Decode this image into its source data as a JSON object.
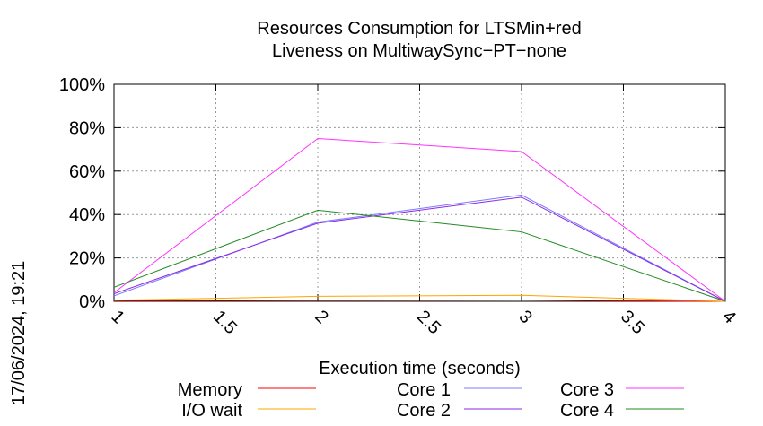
{
  "chart_data": {
    "type": "line",
    "title": "Resources Consumption for LTSMin+red",
    "subtitle": "Liveness on MultiwaySync−PT−none",
    "xlabel": "Execution time (seconds)",
    "ylabel": "",
    "side_label": "17/06/2024, 19:21",
    "xlim": [
      1,
      4
    ],
    "ylim": [
      0,
      100
    ],
    "x_ticks": [
      "1",
      "1.5",
      "2",
      "2.5",
      "3",
      "3.5",
      "4"
    ],
    "y_ticks": [
      "0%",
      "20%",
      "40%",
      "60%",
      "80%",
      "100%"
    ],
    "grid": true,
    "legend_position": "bottom",
    "series": [
      {
        "name": "Memory",
        "color": "#ff0000",
        "x": [
          1,
          2,
          3,
          4
        ],
        "values": [
          0.3,
          0.5,
          0.6,
          0
        ]
      },
      {
        "name": "I/O wait",
        "color": "#ffa500",
        "x": [
          1,
          2,
          3,
          4
        ],
        "values": [
          0.5,
          2.3,
          2.8,
          0
        ]
      },
      {
        "name": "Core 1",
        "color": "#7b7bff",
        "x": [
          1,
          2,
          3,
          4
        ],
        "values": [
          2.5,
          36.5,
          49,
          0
        ]
      },
      {
        "name": "Core 2",
        "color": "#8a2be2",
        "x": [
          1,
          2,
          3,
          4
        ],
        "values": [
          3.5,
          36,
          48,
          0
        ]
      },
      {
        "name": "Core 3",
        "color": "#ff33ff",
        "x": [
          1,
          2,
          3,
          4
        ],
        "values": [
          4,
          75,
          69,
          0
        ]
      },
      {
        "name": "Core 4",
        "color": "#228b22",
        "x": [
          1,
          2,
          3,
          4
        ],
        "values": [
          6.5,
          42,
          32,
          0
        ]
      }
    ]
  }
}
